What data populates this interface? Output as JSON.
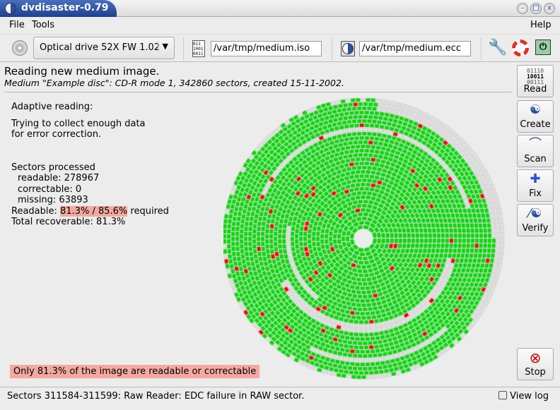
{
  "window": {
    "title": "dvdisaster-0.79"
  },
  "menu": [
    "File",
    "Tools",
    "Help"
  ],
  "toolbar": {
    "drive": "Optical drive 52X FW 1.02",
    "image_file": "/var/tmp/medium.iso",
    "ecc_file": "/var/tmp/medium.ecc"
  },
  "header": {
    "title": "Reading new medium image.",
    "subtitle": "Medium \"Example disc\": CD-R mode 1, 342860 sectors, created 15-11-2002."
  },
  "info": {
    "mode": "Adaptive reading:",
    "desc1": "Trying to collect enough data",
    "desc2": "for error correction.",
    "sectors_title": "Sectors processed",
    "readable": "readable: 278967",
    "correctable": "correctable: 0",
    "missing": "missing: 63893",
    "readable_label": "Readable:",
    "readable_pct": "81.3% / 85.6%",
    "required": "required",
    "total": "Total recoverable: 81.3%"
  },
  "warning": "Only 81.3% of the image are readable or correctable",
  "side": [
    "Read",
    "Create",
    "Scan",
    "Fix",
    "Verify",
    "Stop"
  ],
  "read_icon": [
    "01110",
    "10011",
    "00111"
  ],
  "status": "Sectors 311584-311599: Raw Reader: EDC failure in RAW sector.",
  "view_log": "View log",
  "colors": {
    "good": "#00dd00",
    "bad": "#ff0000",
    "unread": "#e0e0e0",
    "warning": "#f4a9a0"
  }
}
